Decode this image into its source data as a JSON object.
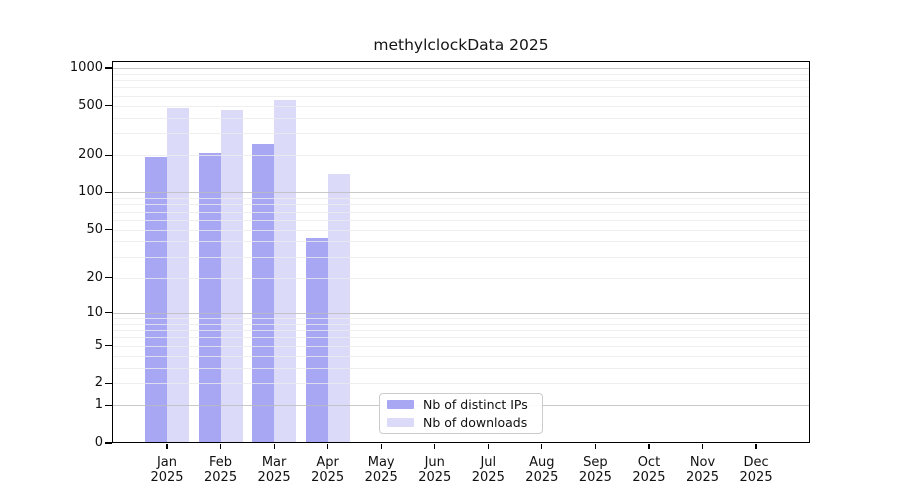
{
  "chart_data": {
    "type": "bar",
    "title": "methylclockData 2025",
    "categories": [
      "Jan",
      "Feb",
      "Mar",
      "Apr",
      "May",
      "Jun",
      "Jul",
      "Aug",
      "Sep",
      "Oct",
      "Nov",
      "Dec"
    ],
    "year_label": "2025",
    "series": [
      {
        "name": "Nb of distinct IPs",
        "color": "#a7a7f4",
        "values": [
          195,
          210,
          245,
          43,
          0,
          0,
          0,
          0,
          0,
          0,
          0,
          0
        ]
      },
      {
        "name": "Nb of downloads",
        "color": "#dbdbf9",
        "values": [
          480,
          460,
          555,
          140,
          0,
          0,
          0,
          0,
          0,
          0,
          0,
          0
        ]
      }
    ],
    "yscale": "log10(value+1)",
    "ylim": [
      0,
      1000
    ],
    "yticks": [
      1000,
      500,
      200,
      100,
      50,
      20,
      10,
      5,
      2,
      1,
      0
    ],
    "grid": {
      "orientation": "horizontal",
      "major_values": [
        1,
        10,
        100,
        1000
      ],
      "major_color": "#bbbbbb",
      "minor_color": "#ebebeb",
      "drawn_over_bars": true
    },
    "legend": {
      "entries": [
        "Nb of distinct IPs",
        "Nb of downloads"
      ],
      "position": "lower center-left inside axes"
    },
    "axis_color": "#000000",
    "background_color": "#ffffff"
  }
}
